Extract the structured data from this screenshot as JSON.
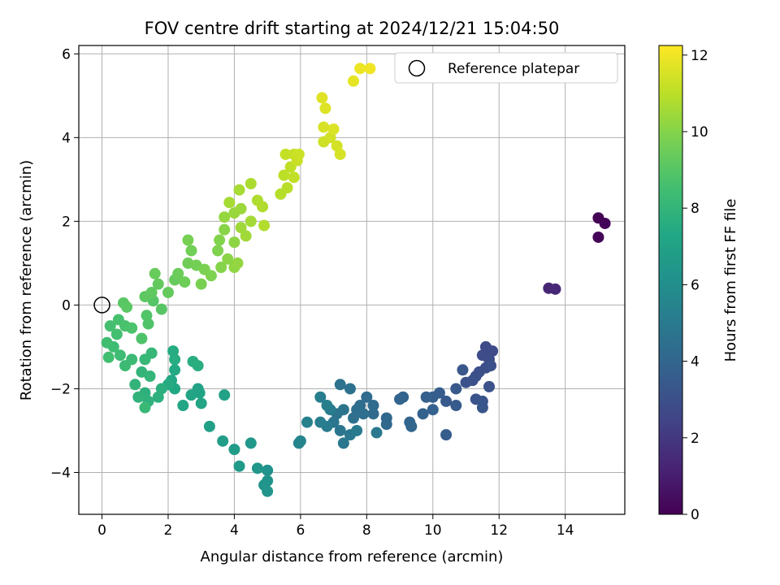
{
  "chart_data": {
    "type": "scatter",
    "title": "FOV centre drift starting at 2024/12/21 15:04:50",
    "xlabel": "Angular distance from reference (arcmin)",
    "ylabel": "Rotation from reference (arcmin)",
    "xlim": [
      -0.7,
      15.8
    ],
    "ylim": [
      -5.0,
      6.2
    ],
    "xticks": [
      0,
      2,
      4,
      6,
      8,
      10,
      12,
      14
    ],
    "xtick_labels": [
      "0",
      "2",
      "4",
      "6",
      "8",
      "10",
      "12",
      "14"
    ],
    "yticks": [
      -4,
      -2,
      0,
      2,
      4,
      6
    ],
    "ytick_labels": [
      "−4",
      "−2",
      "0",
      "2",
      "4",
      "6"
    ],
    "grid": true,
    "legend": {
      "position": "top-right",
      "entries": [
        {
          "label": "Reference platepar",
          "marker": "open-circle"
        }
      ]
    },
    "reference": {
      "x": 0,
      "y": 0
    },
    "colorbar": {
      "label": "Hours from first FF file",
      "colormap": "viridis",
      "range": [
        0,
        12.25
      ],
      "ticks": [
        0,
        2,
        4,
        6,
        8,
        10,
        12
      ],
      "tick_labels": [
        "0",
        "2",
        "4",
        "6",
        "8",
        "10",
        "12"
      ]
    },
    "points": [
      {
        "x": 15.0,
        "y": 2.08,
        "c": 0.05
      },
      {
        "x": 15.2,
        "y": 1.95,
        "c": 0.1
      },
      {
        "x": 15.0,
        "y": 1.62,
        "c": 0.15
      },
      {
        "x": 13.5,
        "y": 0.4,
        "c": 1.3
      },
      {
        "x": 13.7,
        "y": 0.38,
        "c": 1.35
      },
      {
        "x": 11.6,
        "y": -1.0,
        "c": 2.7
      },
      {
        "x": 11.8,
        "y": -1.1,
        "c": 2.75
      },
      {
        "x": 11.5,
        "y": -1.2,
        "c": 2.8
      },
      {
        "x": 11.7,
        "y": -1.3,
        "c": 2.85
      },
      {
        "x": 11.6,
        "y": -1.5,
        "c": 2.9
      },
      {
        "x": 11.4,
        "y": -1.6,
        "c": 2.95
      },
      {
        "x": 11.75,
        "y": -1.45,
        "c": 3.0
      },
      {
        "x": 11.3,
        "y": -1.7,
        "c": 3.0
      },
      {
        "x": 11.2,
        "y": -1.8,
        "c": 3.05
      },
      {
        "x": 11.0,
        "y": -1.85,
        "c": 3.1
      },
      {
        "x": 11.7,
        "y": -1.95,
        "c": 3.1
      },
      {
        "x": 11.3,
        "y": -2.25,
        "c": 3.15
      },
      {
        "x": 11.5,
        "y": -2.3,
        "c": 3.2
      },
      {
        "x": 11.5,
        "y": -2.45,
        "c": 3.25
      },
      {
        "x": 10.9,
        "y": -1.55,
        "c": 3.3
      },
      {
        "x": 10.7,
        "y": -2.0,
        "c": 3.4
      },
      {
        "x": 10.4,
        "y": -2.3,
        "c": 3.45
      },
      {
        "x": 10.7,
        "y": -2.4,
        "c": 3.5
      },
      {
        "x": 10.4,
        "y": -3.1,
        "c": 3.55
      },
      {
        "x": 10.2,
        "y": -2.1,
        "c": 3.6
      },
      {
        "x": 10.0,
        "y": -2.2,
        "c": 3.65
      },
      {
        "x": 9.8,
        "y": -2.2,
        "c": 3.7
      },
      {
        "x": 10.0,
        "y": -2.5,
        "c": 3.75
      },
      {
        "x": 9.7,
        "y": -2.6,
        "c": 3.8
      },
      {
        "x": 9.1,
        "y": -2.2,
        "c": 3.85
      },
      {
        "x": 9.0,
        "y": -2.25,
        "c": 3.9
      },
      {
        "x": 9.3,
        "y": -2.8,
        "c": 3.95
      },
      {
        "x": 9.35,
        "y": -2.9,
        "c": 4.0
      },
      {
        "x": 8.6,
        "y": -2.7,
        "c": 4.1
      },
      {
        "x": 8.6,
        "y": -2.85,
        "c": 4.15
      },
      {
        "x": 8.2,
        "y": -2.4,
        "c": 4.2
      },
      {
        "x": 8.2,
        "y": -2.6,
        "c": 4.25
      },
      {
        "x": 8.0,
        "y": -2.2,
        "c": 4.3
      },
      {
        "x": 7.8,
        "y": -2.4,
        "c": 4.35
      },
      {
        "x": 7.7,
        "y": -2.5,
        "c": 4.4
      },
      {
        "x": 7.9,
        "y": -2.6,
        "c": 4.45
      },
      {
        "x": 7.6,
        "y": -2.7,
        "c": 4.5
      },
      {
        "x": 7.5,
        "y": -2.0,
        "c": 4.55
      },
      {
        "x": 7.2,
        "y": -1.9,
        "c": 4.6
      },
      {
        "x": 7.3,
        "y": -2.5,
        "c": 4.65
      },
      {
        "x": 7.1,
        "y": -2.6,
        "c": 4.7
      },
      {
        "x": 7.0,
        "y": -2.8,
        "c": 4.75
      },
      {
        "x": 7.2,
        "y": -3.0,
        "c": 4.8
      },
      {
        "x": 7.5,
        "y": -3.1,
        "c": 4.85
      },
      {
        "x": 7.3,
        "y": -3.3,
        "c": 4.9
      },
      {
        "x": 8.3,
        "y": -3.05,
        "c": 4.95
      },
      {
        "x": 7.7,
        "y": -3.0,
        "c": 5.0
      },
      {
        "x": 6.9,
        "y": -2.5,
        "c": 5.05
      },
      {
        "x": 6.8,
        "y": -2.9,
        "c": 5.1
      },
      {
        "x": 6.6,
        "y": -2.8,
        "c": 5.15
      },
      {
        "x": 6.6,
        "y": -2.2,
        "c": 5.2
      },
      {
        "x": 6.8,
        "y": -2.4,
        "c": 5.25
      },
      {
        "x": 6.2,
        "y": -2.8,
        "c": 5.35
      },
      {
        "x": 6.0,
        "y": -3.25,
        "c": 5.5
      },
      {
        "x": 5.95,
        "y": -3.3,
        "c": 5.55
      },
      {
        "x": 5.0,
        "y": -3.95,
        "c": 6.2
      },
      {
        "x": 5.0,
        "y": -4.2,
        "c": 6.25
      },
      {
        "x": 4.9,
        "y": -4.3,
        "c": 6.3
      },
      {
        "x": 5.0,
        "y": -4.45,
        "c": 6.35
      },
      {
        "x": 4.7,
        "y": -3.9,
        "c": 6.4
      },
      {
        "x": 4.5,
        "y": -3.3,
        "c": 6.5
      },
      {
        "x": 4.15,
        "y": -3.85,
        "c": 6.6
      },
      {
        "x": 4.0,
        "y": -3.45,
        "c": 6.7
      },
      {
        "x": 3.65,
        "y": -3.25,
        "c": 6.8
      },
      {
        "x": 3.25,
        "y": -2.9,
        "c": 6.9
      },
      {
        "x": 3.7,
        "y": -2.15,
        "c": 7.0
      },
      {
        "x": 2.9,
        "y": -2.0,
        "c": 7.05
      },
      {
        "x": 2.95,
        "y": -2.1,
        "c": 7.1
      },
      {
        "x": 3.0,
        "y": -2.35,
        "c": 7.15
      },
      {
        "x": 2.7,
        "y": -2.15,
        "c": 7.2
      },
      {
        "x": 2.45,
        "y": -2.4,
        "c": 7.25
      },
      {
        "x": 2.2,
        "y": -2.0,
        "c": 7.3
      },
      {
        "x": 2.1,
        "y": -1.8,
        "c": 7.35
      },
      {
        "x": 2.2,
        "y": -1.55,
        "c": 7.4
      },
      {
        "x": 2.0,
        "y": -1.9,
        "c": 7.45
      },
      {
        "x": 2.15,
        "y": -1.1,
        "c": 7.5
      },
      {
        "x": 2.2,
        "y": -1.3,
        "c": 7.55
      },
      {
        "x": 2.75,
        "y": -1.35,
        "c": 7.6
      },
      {
        "x": 2.9,
        "y": -1.45,
        "c": 7.65
      },
      {
        "x": 1.8,
        "y": -2.0,
        "c": 7.7
      },
      {
        "x": 1.7,
        "y": -2.2,
        "c": 7.75
      },
      {
        "x": 1.3,
        "y": -2.1,
        "c": 7.8
      },
      {
        "x": 1.4,
        "y": -2.3,
        "c": 7.85
      },
      {
        "x": 1.1,
        "y": -2.2,
        "c": 7.9
      },
      {
        "x": 1.0,
        "y": -1.9,
        "c": 7.95
      },
      {
        "x": 1.2,
        "y": -1.6,
        "c": 8.0
      },
      {
        "x": 1.45,
        "y": -1.7,
        "c": 8.05
      },
      {
        "x": 1.5,
        "y": -1.15,
        "c": 8.1
      },
      {
        "x": 1.3,
        "y": -1.3,
        "c": 8.15
      },
      {
        "x": 1.3,
        "y": -2.45,
        "c": 8.2
      },
      {
        "x": 0.9,
        "y": -1.3,
        "c": 8.25
      },
      {
        "x": 0.7,
        "y": -1.45,
        "c": 8.3
      },
      {
        "x": 0.55,
        "y": -1.2,
        "c": 8.35
      },
      {
        "x": 0.35,
        "y": -1.0,
        "c": 8.4
      },
      {
        "x": 0.15,
        "y": -0.9,
        "c": 8.45
      },
      {
        "x": 0.2,
        "y": -1.25,
        "c": 8.5
      },
      {
        "x": 0.45,
        "y": -0.7,
        "c": 8.55
      },
      {
        "x": 0.25,
        "y": -0.5,
        "c": 8.6
      },
      {
        "x": 0.5,
        "y": -0.35,
        "c": 8.65
      },
      {
        "x": 0.7,
        "y": -0.5,
        "c": 8.7
      },
      {
        "x": 0.9,
        "y": -0.55,
        "c": 8.75
      },
      {
        "x": 1.2,
        "y": -0.8,
        "c": 8.8
      },
      {
        "x": 1.4,
        "y": -0.45,
        "c": 8.85
      },
      {
        "x": 1.35,
        "y": -0.25,
        "c": 8.9
      },
      {
        "x": 1.55,
        "y": 0.1,
        "c": 8.95
      },
      {
        "x": 1.8,
        "y": -0.1,
        "c": 9.0
      },
      {
        "x": 0.65,
        "y": 0.05,
        "c": 9.05
      },
      {
        "x": 0.75,
        "y": -0.05,
        "c": 9.1
      },
      {
        "x": 1.3,
        "y": 0.2,
        "c": 9.15
      },
      {
        "x": 1.5,
        "y": 0.3,
        "c": 9.2
      },
      {
        "x": 1.7,
        "y": 0.5,
        "c": 9.25
      },
      {
        "x": 2.0,
        "y": 0.3,
        "c": 9.3
      },
      {
        "x": 2.2,
        "y": 0.6,
        "c": 9.35
      },
      {
        "x": 1.6,
        "y": 0.75,
        "c": 9.4
      },
      {
        "x": 2.3,
        "y": 0.75,
        "c": 9.45
      },
      {
        "x": 2.5,
        "y": 0.55,
        "c": 9.5
      },
      {
        "x": 2.6,
        "y": 1.0,
        "c": 9.55
      },
      {
        "x": 2.7,
        "y": 1.3,
        "c": 9.6
      },
      {
        "x": 2.85,
        "y": 0.95,
        "c": 9.65
      },
      {
        "x": 2.6,
        "y": 1.55,
        "c": 9.7
      },
      {
        "x": 3.0,
        "y": 0.5,
        "c": 9.75
      },
      {
        "x": 3.1,
        "y": 0.85,
        "c": 9.8
      },
      {
        "x": 3.3,
        "y": 0.7,
        "c": 9.85
      },
      {
        "x": 3.5,
        "y": 1.3,
        "c": 9.9
      },
      {
        "x": 3.55,
        "y": 1.55,
        "c": 9.95
      },
      {
        "x": 3.6,
        "y": 0.9,
        "c": 10.0
      },
      {
        "x": 3.7,
        "y": 1.8,
        "c": 10.05
      },
      {
        "x": 3.8,
        "y": 1.1,
        "c": 10.1
      },
      {
        "x": 4.0,
        "y": 1.5,
        "c": 10.15
      },
      {
        "x": 4.0,
        "y": 0.9,
        "c": 10.2
      },
      {
        "x": 4.1,
        "y": 1.0,
        "c": 10.25
      },
      {
        "x": 3.7,
        "y": 2.1,
        "c": 10.3
      },
      {
        "x": 4.0,
        "y": 2.2,
        "c": 10.35
      },
      {
        "x": 4.2,
        "y": 2.3,
        "c": 10.4
      },
      {
        "x": 4.2,
        "y": 1.85,
        "c": 10.45
      },
      {
        "x": 4.35,
        "y": 1.65,
        "c": 10.5
      },
      {
        "x": 4.5,
        "y": 2.0,
        "c": 10.55
      },
      {
        "x": 3.85,
        "y": 2.45,
        "c": 10.6
      },
      {
        "x": 4.15,
        "y": 2.75,
        "c": 10.65
      },
      {
        "x": 4.5,
        "y": 2.9,
        "c": 10.7
      },
      {
        "x": 4.7,
        "y": 2.5,
        "c": 10.75
      },
      {
        "x": 4.85,
        "y": 2.35,
        "c": 10.8
      },
      {
        "x": 4.9,
        "y": 1.9,
        "c": 10.85
      },
      {
        "x": 5.4,
        "y": 2.65,
        "c": 10.9
      },
      {
        "x": 5.6,
        "y": 2.8,
        "c": 10.95
      },
      {
        "x": 5.5,
        "y": 3.1,
        "c": 11.0
      },
      {
        "x": 5.7,
        "y": 3.3,
        "c": 11.05
      },
      {
        "x": 5.8,
        "y": 3.05,
        "c": 11.1
      },
      {
        "x": 5.55,
        "y": 3.6,
        "c": 11.15
      },
      {
        "x": 5.8,
        "y": 3.6,
        "c": 11.2
      },
      {
        "x": 5.9,
        "y": 3.45,
        "c": 11.25
      },
      {
        "x": 5.95,
        "y": 3.6,
        "c": 11.3
      },
      {
        "x": 6.7,
        "y": 3.9,
        "c": 11.35
      },
      {
        "x": 6.9,
        "y": 4.0,
        "c": 11.4
      },
      {
        "x": 7.1,
        "y": 3.8,
        "c": 11.45
      },
      {
        "x": 7.2,
        "y": 3.6,
        "c": 11.5
      },
      {
        "x": 6.7,
        "y": 4.25,
        "c": 11.55
      },
      {
        "x": 7.0,
        "y": 4.2,
        "c": 11.6
      },
      {
        "x": 6.75,
        "y": 4.7,
        "c": 11.65
      },
      {
        "x": 6.65,
        "y": 4.95,
        "c": 11.7
      },
      {
        "x": 7.6,
        "y": 5.35,
        "c": 11.8
      },
      {
        "x": 7.8,
        "y": 5.65,
        "c": 11.9
      },
      {
        "x": 8.1,
        "y": 5.65,
        "c": 12.0
      }
    ]
  }
}
